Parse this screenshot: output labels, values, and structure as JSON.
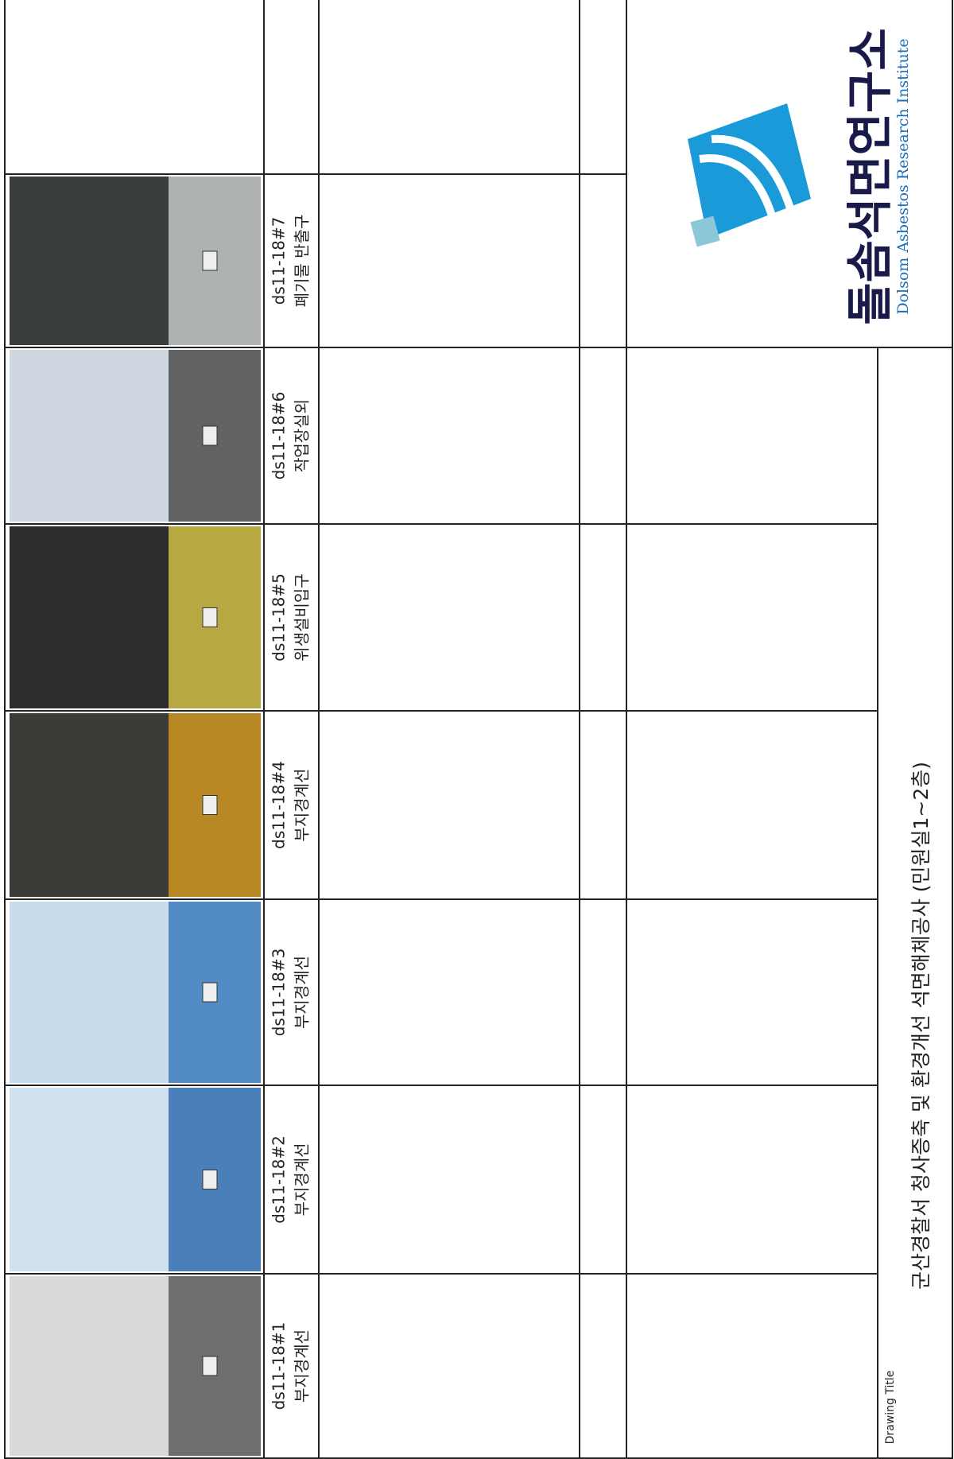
{
  "photos": [
    {
      "id": "ds11-18#1",
      "description": "부지경계선"
    },
    {
      "id": "ds11-18#2",
      "description": "부지경계선"
    },
    {
      "id": "ds11-18#3",
      "description": "부지경계선"
    },
    {
      "id": "ds11-18#4",
      "description": "부지경계선"
    },
    {
      "id": "ds11-18#5",
      "description": "위생설비입구"
    },
    {
      "id": "ds11-18#6",
      "description": "작업장실외"
    },
    {
      "id": "ds11-18#7",
      "description": "폐기물 반출구"
    }
  ],
  "logo": {
    "name": "돌솜석면연구소",
    "english": "Dolsom Asbestos Research Institute"
  },
  "drawing_title": {
    "label": "Drawing Title",
    "text": "군산경찰서 청사증축 및 환경개선 석면해체공사  (민원실1~2층)"
  }
}
